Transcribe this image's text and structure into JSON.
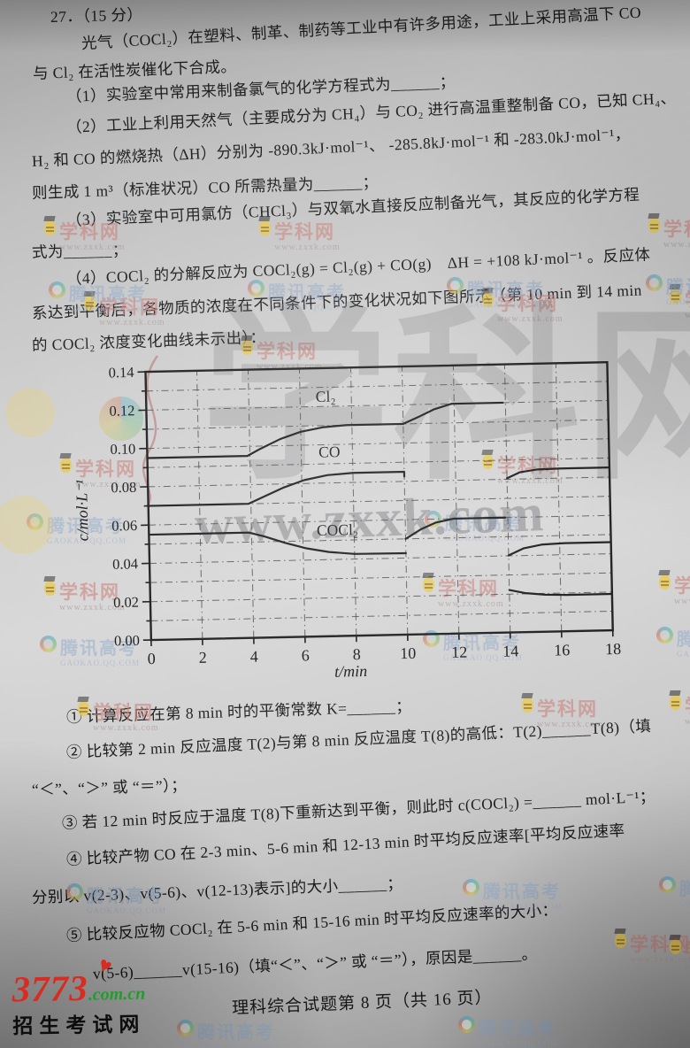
{
  "question": {
    "header": "27．（15 分）",
    "intro": [
      "光气（COCl₂）在塑料、制革、制药等工业中有许多用途，工业上采用高温下 CO",
      "与 Cl₂ 在活性炭催化下合成。"
    ],
    "q1": [
      "（1）实验室中常用来制备氯气的化学方程式为______；"
    ],
    "q2": [
      "（2）工业上利用天然气（主要成分为 CH₄）与 CO₂ 进行高温重整制备 CO，已知 CH₄、",
      "H₂ 和 CO 的燃烧热（ΔH）分别为 -890.3kJ·mol⁻¹、 -285.8kJ·mol⁻¹ 和 -283.0kJ·mol⁻¹，",
      "则生成 1 m³（标准状况）CO 所需热量为______；"
    ],
    "q3": [
      "（3）实验室中可用氯仿（CHCl₃）与双氧水直接反应制备光气，其反应的化学方程",
      "式为______；"
    ],
    "q4": [
      "（4）COCl₂ 的分解反应为 COCl₂(g) =  Cl₂(g) +  CO(g)　ΔH = +108 kJ·mol⁻¹ 。反应体",
      "系达到平衡后，各物质的浓度在不同条件下的变化状况如下图所示（第 10 min 到 14 min",
      "的 COCl₂ 浓度变化曲线未示出）："
    ],
    "items": {
      "i1": [
        "① 计算反应在第 8 min 时的平衡常数 K=______；"
      ],
      "i2": [
        "② 比较第 2 min 反应温度 T(2)与第 8 min 反应温度 T(8)的高低：T(2)______T(8)（填",
        "“＜”、“＞” 或 “＝”）；"
      ],
      "i3": [
        "③ 若 12 min 时反应于温度 T(8)下重新达到平衡，则此时 c(COCl₂) =______ mol·L⁻¹；"
      ],
      "i4": [
        "④ 比较产物 CO 在 2-3 min、5-6 min 和 12-13 min 时平均反应速率[平均反应速率",
        "分别以 v(2-3)、v(5-6)、v(12-13)表示]的大小______；"
      ],
      "i5": [
        "⑤ 比较反应物 COCl₂ 在 5-6 min 和 15-16 min 时平均反应速率的大小：",
        "v(5-6)______v(15-16)（填“＜”、“＞” 或 “＝”），原因是______。"
      ]
    }
  },
  "chart_data": {
    "type": "line",
    "title": "",
    "xlabel": "t/min",
    "ylabel": "c/mol·L⁻¹",
    "xlim": [
      0,
      18
    ],
    "ylim": [
      0,
      0.14
    ],
    "xticks": [
      0,
      2,
      4,
      6,
      8,
      10,
      12,
      14,
      16,
      18
    ],
    "yticks": [
      0.0,
      0.02,
      0.04,
      0.06,
      0.08,
      0.1,
      0.12,
      0.14
    ],
    "y_minor_step": 0.01,
    "grid": "dash-dot every 0.01 horizontal, every 2 min vertical",
    "note": "COCl₂ curve between 10 and 14 min is intentionally not shown",
    "series": [
      {
        "name": "Cl₂",
        "label": "Cl₂",
        "label_pos": [
          7.0,
          0.1225
        ],
        "segments": [
          [
            [
              0,
              0.095
            ],
            [
              3.9,
              0.095
            ],
            [
              4.4,
              0.0985
            ],
            [
              5.2,
              0.1035
            ],
            [
              6.0,
              0.107
            ],
            [
              6.9,
              0.1092
            ],
            [
              7.8,
              0.11
            ],
            [
              10,
              0.11
            ],
            [
              10.6,
              0.1135
            ],
            [
              11.2,
              0.1172
            ],
            [
              11.9,
              0.12
            ],
            [
              13.9,
              0.12
            ]
          ],
          [
            [
              14,
              0.0805
            ],
            [
              14.5,
              0.0835
            ],
            [
              15.2,
              0.0848
            ],
            [
              16,
              0.085
            ],
            [
              18,
              0.085
            ]
          ]
        ]
      },
      {
        "name": "CO",
        "label": "CO",
        "label_pos": [
          7.1,
          0.0935
        ],
        "segments": [
          [
            [
              0,
              0.07
            ],
            [
              3.9,
              0.07
            ],
            [
              4.5,
              0.0735
            ],
            [
              5.3,
              0.0782
            ],
            [
              6.1,
              0.0818
            ],
            [
              7.0,
              0.0841
            ],
            [
              8.0,
              0.085
            ],
            [
              10,
              0.085
            ],
            [
              10,
              0.0825
            ]
          ],
          [
            [
              10,
              0.05
            ],
            [
              10.6,
              0.0548
            ],
            [
              11.2,
              0.0582
            ],
            [
              11.9,
              0.06
            ],
            [
              13.9,
              0.06
            ]
          ],
          [
            [
              14,
              0.0402
            ],
            [
              14.6,
              0.0438
            ],
            [
              15.3,
              0.0455
            ],
            [
              16.2,
              0.046
            ],
            [
              18,
              0.046
            ]
          ]
        ]
      },
      {
        "name": "COCl₂",
        "label": "COCl₂",
        "label_pos": [
          7.35,
          0.0527
        ],
        "segments": [
          [
            [
              0,
              0.055
            ],
            [
              3.9,
              0.055
            ],
            [
              4.5,
              0.0528
            ],
            [
              5.3,
              0.0492
            ],
            [
              6.1,
              0.0462
            ],
            [
              7.0,
              0.044
            ],
            [
              8.0,
              0.0427
            ],
            [
              10,
              0.0425
            ]
          ],
          [
            [
              14,
              0.0222
            ],
            [
              14.6,
              0.0204
            ],
            [
              15.4,
              0.0193
            ],
            [
              16.2,
              0.019
            ],
            [
              18,
              0.019
            ]
          ]
        ]
      }
    ]
  },
  "watermarks": {
    "zxxk": {
      "name": "学科网",
      "url": "www.zxxk.com"
    },
    "tencent": {
      "name": "腾讯高考",
      "url": "GAOKAO.QQ.COM"
    },
    "big_url": "www.zxxk.com",
    "big_glyphs": "学科网"
  },
  "footer": {
    "text": "理科综合试题第 8 页（共 16 页）"
  },
  "logo": {
    "number": "3773",
    "domain": ".com.cn",
    "heart": "♥",
    "site": "招生考试网"
  }
}
